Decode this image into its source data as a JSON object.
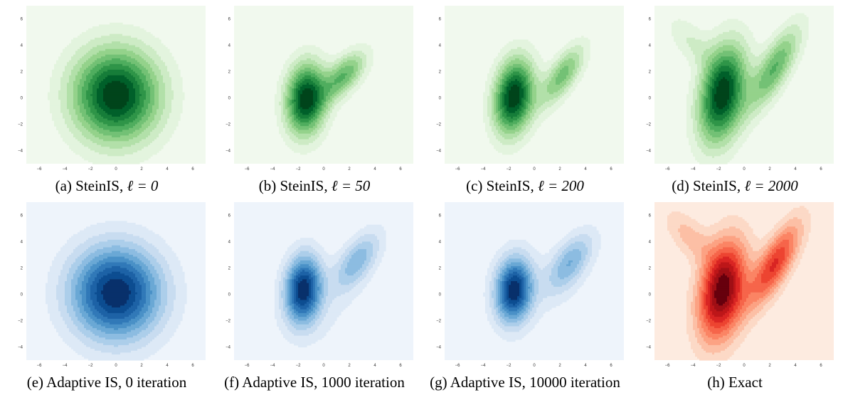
{
  "chart_data": [
    {
      "type": "contour",
      "method": "SteinIS",
      "setting": "ℓ = 0",
      "caption_prefix": "(a)",
      "colormap": "Greens",
      "colors": {
        "background": "#f1f9ee",
        "levels": [
          "#e3f4de",
          "#cdebc5",
          "#b2e0a9",
          "#94d28b",
          "#73c175",
          "#4fad5e",
          "#2f9548",
          "#167d39",
          "#00602a",
          "#00441b"
        ]
      },
      "xlim": [
        -7,
        7
      ],
      "ylim": [
        -5,
        7
      ],
      "xticks": [
        -6,
        -4,
        -2,
        0,
        2,
        4,
        6
      ],
      "yticks": [
        -4,
        -2,
        0,
        2,
        4,
        6
      ],
      "components": [
        {
          "mx": 0,
          "my": 0.2,
          "sx": 2.4,
          "sy": 2.5,
          "rho": 0.0,
          "w": 1.0
        }
      ]
    },
    {
      "type": "contour",
      "method": "SteinIS",
      "setting": "ℓ = 50",
      "caption_prefix": "(b)",
      "colormap": "Greens",
      "colors": {
        "background": "#f1f9ee",
        "levels": [
          "#e3f4de",
          "#cdebc5",
          "#b2e0a9",
          "#94d28b",
          "#73c175",
          "#4fad5e",
          "#2f9548",
          "#167d39",
          "#00602a",
          "#00441b"
        ]
      },
      "xlim": [
        -7,
        7
      ],
      "ylim": [
        -5,
        7
      ],
      "xticks": [
        -6,
        -4,
        -2,
        0,
        2,
        4,
        6
      ],
      "yticks": [
        -4,
        -2,
        0,
        2,
        4,
        6
      ],
      "components": [
        {
          "mx": -1.4,
          "my": -0.1,
          "sx": 1.1,
          "sy": 1.9,
          "rho": 0.1,
          "w": 1.0
        },
        {
          "mx": 1.6,
          "my": 1.7,
          "sx": 1.2,
          "sy": 1.3,
          "rho": 0.6,
          "w": 0.55
        }
      ]
    },
    {
      "type": "contour",
      "method": "SteinIS",
      "setting": "ℓ = 200",
      "caption_prefix": "(c)",
      "colormap": "Greens",
      "colors": {
        "background": "#f1f9ee",
        "levels": [
          "#e3f4de",
          "#cdebc5",
          "#b2e0a9",
          "#94d28b",
          "#73c175",
          "#4fad5e",
          "#2f9548",
          "#167d39",
          "#00602a",
          "#00441b"
        ]
      },
      "xlim": [
        -7,
        7
      ],
      "ylim": [
        -5,
        7
      ],
      "xticks": [
        -6,
        -4,
        -2,
        0,
        2,
        4,
        6
      ],
      "yticks": [
        -4,
        -2,
        0,
        2,
        4,
        6
      ],
      "components": [
        {
          "mx": -1.6,
          "my": 0.1,
          "sx": 1.1,
          "sy": 2.0,
          "rho": 0.2,
          "w": 1.0
        },
        {
          "mx": 2.2,
          "my": 1.7,
          "sx": 1.2,
          "sy": 1.6,
          "rho": 0.7,
          "w": 0.5
        }
      ]
    },
    {
      "type": "contour",
      "method": "SteinIS",
      "setting": "ℓ = 2000",
      "caption_prefix": "(d)",
      "colormap": "Greens",
      "colors": {
        "background": "#f1f9ee",
        "levels": [
          "#e3f4de",
          "#cdebc5",
          "#b2e0a9",
          "#94d28b",
          "#73c175",
          "#4fad5e",
          "#2f9548",
          "#167d39",
          "#00602a",
          "#00441b"
        ]
      },
      "xlim": [
        -7,
        7
      ],
      "ylim": [
        -5,
        7
      ],
      "xticks": [
        -6,
        -4,
        -2,
        0,
        2,
        4,
        6
      ],
      "yticks": [
        -4,
        -2,
        0,
        2,
        4,
        6
      ],
      "components": [
        {
          "mx": -1.7,
          "my": 0.3,
          "sx": 1.3,
          "sy": 2.6,
          "rho": 0.3,
          "w": 1.0
        },
        {
          "mx": 2.4,
          "my": 2.3,
          "sx": 1.4,
          "sy": 2.2,
          "rho": 0.75,
          "w": 0.55
        },
        {
          "mx": -4.2,
          "my": 4.3,
          "sx": 1.3,
          "sy": 1.4,
          "rho": -0.6,
          "w": 0.18
        }
      ]
    },
    {
      "type": "contour",
      "method": "Adaptive IS",
      "setting": "0 iteration",
      "caption_prefix": "(e)",
      "colormap": "Blues",
      "colors": {
        "background": "#eef4fb",
        "levels": [
          "#dde9f6",
          "#c8dcf0",
          "#acceea",
          "#8cbce1",
          "#6aa8d5",
          "#4a91c7",
          "#3179b8",
          "#1d62a6",
          "#0c4d91",
          "#08306b"
        ]
      },
      "xlim": [
        -7,
        7
      ],
      "ylim": [
        -5,
        7
      ],
      "xticks": [
        -6,
        -4,
        -2,
        0,
        2,
        4,
        6
      ],
      "yticks": [
        -4,
        -2,
        0,
        2,
        4,
        6
      ],
      "components": [
        {
          "mx": 0,
          "my": 0.1,
          "sx": 2.5,
          "sy": 2.5,
          "rho": 0.0,
          "w": 1.0
        }
      ]
    },
    {
      "type": "contour",
      "method": "Adaptive IS",
      "setting": "1000 iteration",
      "caption_prefix": "(f)",
      "colormap": "Blues",
      "colors": {
        "background": "#eef4fb",
        "levels": [
          "#dde9f6",
          "#c8dcf0",
          "#acceea",
          "#8cbce1",
          "#6aa8d5",
          "#4a91c7",
          "#3179b8",
          "#1d62a6",
          "#0c4d91",
          "#08306b"
        ]
      },
      "xlim": [
        -7,
        7
      ],
      "ylim": [
        -5,
        7
      ],
      "xticks": [
        -6,
        -4,
        -2,
        0,
        2,
        4,
        6
      ],
      "yticks": [
        -4,
        -2,
        0,
        2,
        4,
        6
      ],
      "components": [
        {
          "mx": -1.6,
          "my": 0.4,
          "sx": 1.0,
          "sy": 1.8,
          "rho": 0.1,
          "w": 1.0
        },
        {
          "mx": 2.6,
          "my": 2.5,
          "sx": 1.3,
          "sy": 1.6,
          "rho": 0.6,
          "w": 0.45
        },
        {
          "mx": 0.0,
          "my": -1.8,
          "sx": 3.0,
          "sy": 2.2,
          "rho": 0.0,
          "w": 0.08
        }
      ]
    },
    {
      "type": "contour",
      "method": "Adaptive IS",
      "setting": "10000 iteration",
      "caption_prefix": "(g)",
      "colormap": "Blues",
      "colors": {
        "background": "#eef4fb",
        "levels": [
          "#dde9f6",
          "#c8dcf0",
          "#acceea",
          "#8cbce1",
          "#6aa8d5",
          "#4a91c7",
          "#3179b8",
          "#1d62a6",
          "#0c4d91",
          "#08306b"
        ]
      },
      "xlim": [
        -7,
        7
      ],
      "ylim": [
        -5,
        7
      ],
      "xticks": [
        -6,
        -4,
        -2,
        0,
        2,
        4,
        6
      ],
      "yticks": [
        -4,
        -2,
        0,
        2,
        4,
        6
      ],
      "components": [
        {
          "mx": -1.6,
          "my": 0.3,
          "sx": 1.0,
          "sy": 1.7,
          "rho": 0.1,
          "w": 1.0
        },
        {
          "mx": 2.8,
          "my": 2.4,
          "sx": 1.3,
          "sy": 1.6,
          "rho": 0.6,
          "w": 0.45
        },
        {
          "mx": 0.0,
          "my": 0.5,
          "sx": 3.2,
          "sy": 2.8,
          "rho": 0.0,
          "w": 0.06
        }
      ]
    },
    {
      "type": "contour",
      "method": "Exact",
      "setting": "",
      "caption_prefix": "(h)",
      "colormap": "Reds",
      "colors": {
        "background": "#fdebe0",
        "levels": [
          "#fcd9c6",
          "#fcbfa5",
          "#fca283",
          "#fb8464",
          "#f6654a",
          "#ed4431",
          "#d92523",
          "#bd1619",
          "#a00f15",
          "#67000d"
        ]
      },
      "xlim": [
        -7,
        7
      ],
      "ylim": [
        -5,
        7
      ],
      "xticks": [
        -6,
        -4,
        -2,
        0,
        2,
        4,
        6
      ],
      "yticks": [
        -4,
        -2,
        0,
        2,
        4,
        6
      ],
      "components": [
        {
          "mx": -1.7,
          "my": 0.3,
          "sx": 1.3,
          "sy": 2.6,
          "rho": 0.3,
          "w": 1.0
        },
        {
          "mx": 2.4,
          "my": 2.3,
          "sx": 1.4,
          "sy": 2.2,
          "rho": 0.75,
          "w": 0.65
        },
        {
          "mx": -4.3,
          "my": 4.4,
          "sx": 1.3,
          "sy": 1.4,
          "rho": -0.6,
          "w": 0.22
        }
      ]
    }
  ]
}
